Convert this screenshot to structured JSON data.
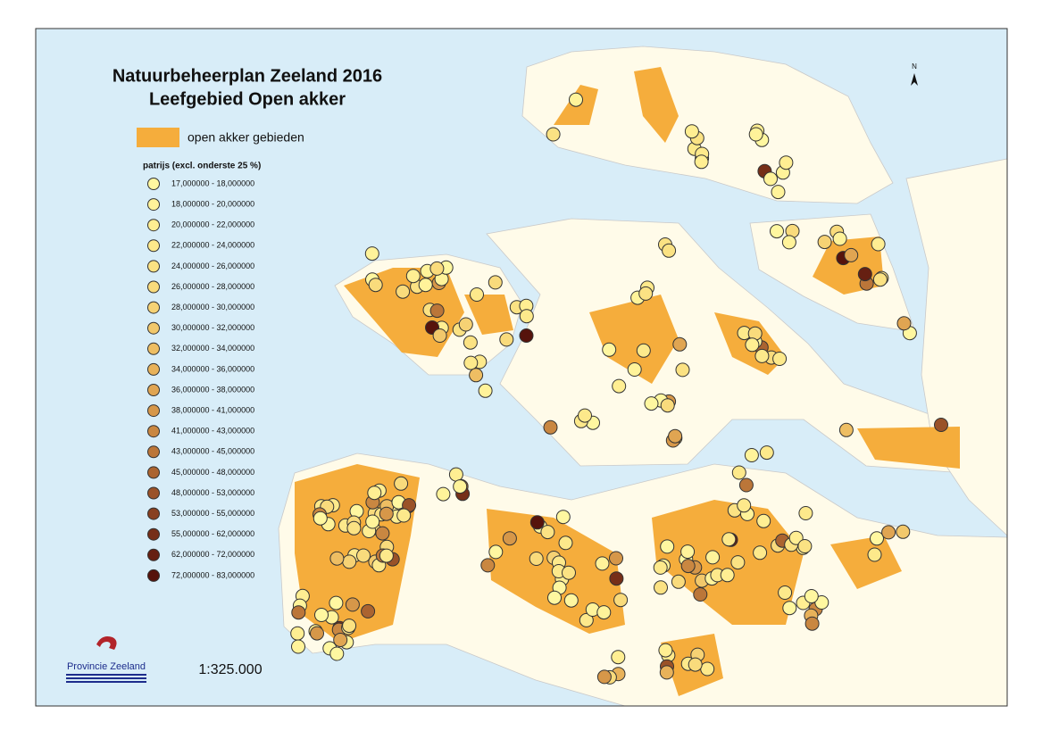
{
  "title": [
    "Natuurbeheerplan Zeeland 2016",
    "Leefgebied Open akker"
  ],
  "area_legend": {
    "label": "open akker gebieden",
    "color": "#f5ad3c"
  },
  "points_legend": {
    "title": "patrijs (excl. onderste 25 %)",
    "classes": [
      {
        "label": "17,000000 - 18,000000",
        "color": "#fff7a0"
      },
      {
        "label": "18,000000 - 20,000000",
        "color": "#fff39a"
      },
      {
        "label": "20,000000 - 22,000000",
        "color": "#ffee92"
      },
      {
        "label": "22,000000 - 24,000000",
        "color": "#fde98b"
      },
      {
        "label": "24,000000 - 26,000000",
        "color": "#fbe283"
      },
      {
        "label": "26,000000 - 28,000000",
        "color": "#f9db7c"
      },
      {
        "label": "28,000000 - 30,000000",
        "color": "#f6d274"
      },
      {
        "label": "30,000000 - 32,000000",
        "color": "#f2c86b"
      },
      {
        "label": "32,000000 - 34,000000",
        "color": "#eebe63"
      },
      {
        "label": "34,000000 - 36,000000",
        "color": "#e8b25a"
      },
      {
        "label": "36,000000 - 38,000000",
        "color": "#e0a552"
      },
      {
        "label": "38,000000 - 41,000000",
        "color": "#d69749"
      },
      {
        "label": "41,000000 - 43,000000",
        "color": "#c98741"
      },
      {
        "label": "43,000000 - 45,000000",
        "color": "#bb7639"
      },
      {
        "label": "45,000000 - 48,000000",
        "color": "#ab6430"
      },
      {
        "label": "48,000000 - 53,000000",
        "color": "#9a5228"
      },
      {
        "label": "53,000000 - 55,000000",
        "color": "#884020"
      },
      {
        "label": "55,000000 - 62,000000",
        "color": "#762f18"
      },
      {
        "label": "62,000000 - 72,000000",
        "color": "#662012"
      },
      {
        "label": "72,000000 - 83,000000",
        "color": "#56130c"
      }
    ]
  },
  "logo": "Provincie Zeeland",
  "scale": "1:325.000",
  "north": "N"
}
